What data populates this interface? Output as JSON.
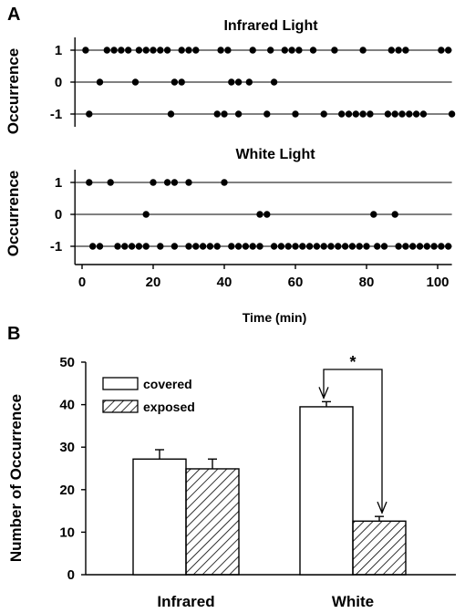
{
  "panels": {
    "a_letter": "A",
    "b_letter": "B"
  },
  "chart_data": [
    {
      "type": "scatter",
      "title": "Infrared Light",
      "xlabel": "",
      "ylabel": "Occurrence",
      "xlim": [
        -2,
        104
      ],
      "ylim": [
        -1.4,
        1.4
      ],
      "yticks": [
        1,
        0,
        -1
      ],
      "x_ticks_visible": false,
      "grid": "reference lines at y = 1, 0, -1",
      "series": [
        {
          "y": 1,
          "x": [
            1,
            7,
            9,
            11,
            13,
            16,
            18,
            20,
            22,
            24,
            28,
            30,
            32,
            39,
            41,
            48,
            53,
            57,
            59,
            61,
            65,
            71,
            79,
            87,
            89,
            91,
            101,
            103
          ]
        },
        {
          "y": 0,
          "x": [
            5,
            15,
            26,
            28,
            42,
            44,
            47,
            54
          ]
        },
        {
          "y": -1,
          "x": [
            2,
            25,
            38,
            40,
            44,
            52,
            60,
            68,
            73,
            75,
            77,
            79,
            81,
            86,
            88,
            90,
            92,
            94,
            96,
            104
          ]
        }
      ]
    },
    {
      "type": "scatter",
      "title": "White Light",
      "xlabel": "Time (min)",
      "ylabel": "Occurrence",
      "xlim": [
        -2,
        104
      ],
      "ylim": [
        -1.4,
        1.4
      ],
      "xticks": [
        0,
        20,
        40,
        60,
        80,
        100
      ],
      "yticks": [
        1,
        0,
        -1
      ],
      "grid": "reference lines at y = 1, 0, -1",
      "series": [
        {
          "y": 1,
          "x": [
            2,
            8,
            20,
            24,
            26,
            30,
            40
          ]
        },
        {
          "y": 0,
          "x": [
            18,
            50,
            52,
            82,
            88
          ]
        },
        {
          "y": -1,
          "x": [
            3,
            5,
            10,
            12,
            14,
            16,
            18,
            22,
            26,
            30,
            32,
            34,
            36,
            38,
            42,
            44,
            46,
            48,
            50,
            54,
            56,
            58,
            60,
            62,
            64,
            66,
            68,
            70,
            72,
            74,
            76,
            78,
            80,
            83,
            85,
            89,
            91,
            93,
            95,
            97,
            99,
            101,
            103
          ]
        }
      ]
    },
    {
      "type": "bar",
      "title": "",
      "xlabel": "",
      "ylabel": "Number of Occurrence",
      "categories": [
        "Infrared",
        "White"
      ],
      "ylim": [
        0,
        50
      ],
      "yticks": [
        0,
        10,
        20,
        30,
        40,
        50
      ],
      "legend_position": "top-left",
      "series": [
        {
          "name": "covered",
          "pattern": "open",
          "values": [
            27.2,
            39.5
          ],
          "errors": [
            2.2,
            1.2
          ]
        },
        {
          "name": "exposed",
          "pattern": "hatched",
          "values": [
            24.9,
            12.6
          ],
          "errors": [
            2.3,
            1.1
          ]
        }
      ],
      "annotation": {
        "text": "*",
        "between": [
          "White covered",
          "White exposed"
        ]
      }
    }
  ]
}
